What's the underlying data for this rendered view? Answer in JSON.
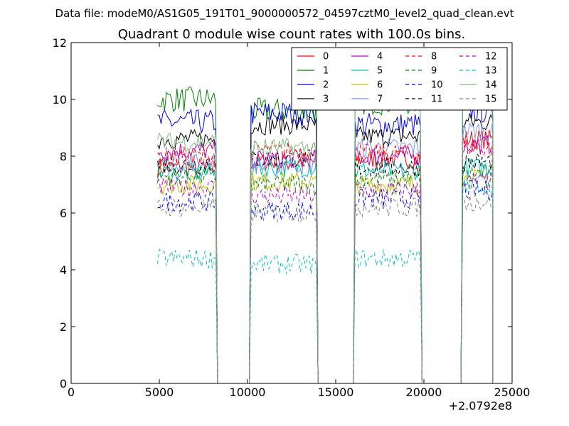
{
  "suptitle": "Data file: modeM0/AS1G05_191T01_9000000572_04597cztM0_level2_quad_clean.evt",
  "chart_data": {
    "type": "line",
    "title": "Quadrant 0 module wise count rates with 100.0s bins.",
    "xlabel": "",
    "ylabel": "",
    "xlim": [
      0,
      25000
    ],
    "ylim": [
      0,
      12
    ],
    "x_offset_label": "+2.0792e8",
    "xticks": [
      0,
      5000,
      10000,
      15000,
      20000,
      25000
    ],
    "yticks": [
      0,
      2,
      4,
      6,
      8,
      10,
      12
    ],
    "grid": false,
    "legend_position": "top-right",
    "legend_columns": 4,
    "segments": [
      {
        "x_start": 4900,
        "x_end": 8200,
        "drop_x": 8300
      },
      {
        "x_start": 10200,
        "x_end": 13900,
        "drop_x": 14000
      },
      {
        "x_start": 16100,
        "x_end": 19800,
        "drop_x": 19900
      },
      {
        "x_start": 22200,
        "x_end": 23900,
        "drop_x": 23900
      }
    ],
    "gap_x_ranges": [
      [
        8300,
        10100
      ],
      [
        14000,
        16000
      ],
      [
        19900,
        22100
      ]
    ],
    "series": [
      {
        "name": "0",
        "color": "#ff0000",
        "dash": "solid",
        "levels": [
          7.6,
          7.8,
          7.9,
          8.6
        ]
      },
      {
        "name": "1",
        "color": "#008000",
        "dash": "solid",
        "levels": [
          10.0,
          9.6,
          9.9,
          10.6
        ]
      },
      {
        "name": "2",
        "color": "#0000ff",
        "dash": "solid",
        "levels": [
          9.2,
          9.5,
          9.1,
          9.6
        ]
      },
      {
        "name": "3",
        "color": "#000000",
        "dash": "solid",
        "levels": [
          8.6,
          9.1,
          8.7,
          9.2
        ]
      },
      {
        "name": "4",
        "color": "#bf00bf",
        "dash": "solid",
        "levels": [
          8.2,
          7.9,
          8.0,
          8.4
        ]
      },
      {
        "name": "5",
        "color": "#00bfbf",
        "dash": "solid",
        "levels": [
          7.4,
          7.6,
          7.5,
          7.6
        ]
      },
      {
        "name": "6",
        "color": "#bfbf00",
        "dash": "solid",
        "levels": [
          7.0,
          7.1,
          7.0,
          7.2
        ]
      },
      {
        "name": "7",
        "color": "#7b8fe8",
        "dash": "solid",
        "levels": [
          7.8,
          7.7,
          8.3,
          8.9
        ]
      },
      {
        "name": "8",
        "color": "#ff0000",
        "dash": "dashed",
        "levels": [
          8.0,
          8.2,
          8.1,
          8.3
        ]
      },
      {
        "name": "9",
        "color": "#008000",
        "dash": "dashed",
        "levels": [
          7.3,
          7.0,
          7.2,
          7.4
        ]
      },
      {
        "name": "10",
        "color": "#0000ff",
        "dash": "dashed",
        "levels": [
          6.4,
          6.1,
          6.5,
          6.8
        ]
      },
      {
        "name": "11",
        "color": "#000000",
        "dash": "dashed",
        "levels": [
          7.7,
          7.9,
          7.6,
          7.8
        ]
      },
      {
        "name": "12",
        "color": "#bf00bf",
        "dash": "dashed",
        "levels": [
          6.9,
          6.6,
          6.8,
          7.1
        ]
      },
      {
        "name": "13",
        "color": "#00bfbf",
        "dash": "dashed",
        "levels": [
          4.4,
          4.2,
          4.4,
          7.0
        ]
      },
      {
        "name": "14",
        "color": "#7fbf7f",
        "dash": "solid",
        "levels": [
          8.5,
          8.3,
          10.0,
          10.5
        ]
      },
      {
        "name": "15",
        "color": "#808080",
        "dash": "dashed",
        "levels": [
          6.2,
          6.0,
          6.2,
          6.4
        ]
      }
    ]
  }
}
